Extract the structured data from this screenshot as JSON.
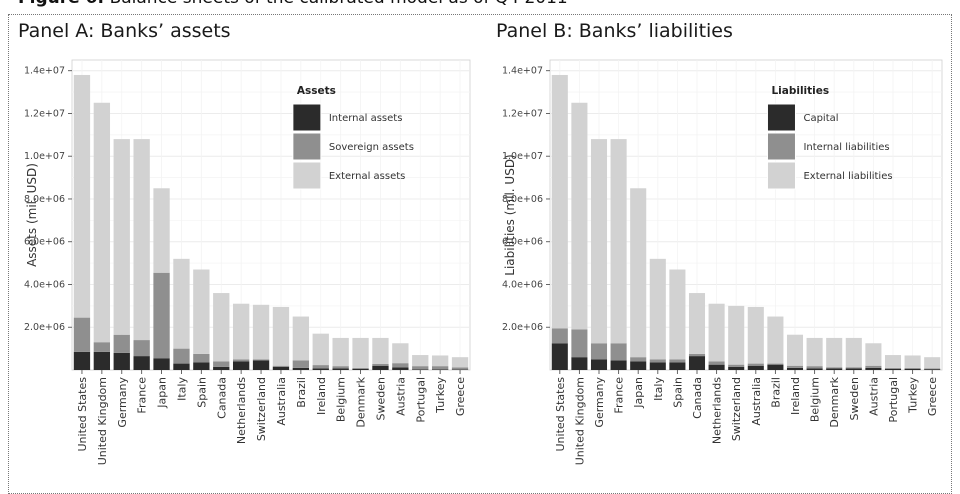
{
  "figure": {
    "caption_bold": "Figure 6:",
    "caption_text": " Balance sheets of the calibrated model as of Q4 2011"
  },
  "colors": {
    "dark": "#2b2b2b",
    "mid": "#8f8f8f",
    "light": "#d2d2d2",
    "panel_bg": "#ffffff",
    "grid": "#ececec"
  },
  "chart_data": [
    {
      "type": "bar",
      "panel_title": "Panel A: Banks’ assets",
      "ylabel": "Assets (mil. USD)",
      "ylim": [
        0,
        14500000
      ],
      "yticks": [
        2000000,
        4000000,
        6000000,
        8000000,
        10000000,
        12000000,
        14000000
      ],
      "ytick_labels": [
        "2.0e+06",
        "4.0e+06",
        "6.0e+06",
        "8.0e+06",
        "1.0e+07",
        "1.2e+07",
        "1.4e+07"
      ],
      "grid": true,
      "stacked": true,
      "legend_title": "Assets",
      "legend_position": "top-right",
      "categories": [
        "United States",
        "United Kingdom",
        "Germany",
        "France",
        "Japan",
        "Italy",
        "Spain",
        "Canada",
        "Netherlands",
        "Switzerland",
        "Australia",
        "Brazil",
        "Ireland",
        "Belgium",
        "Denmark",
        "Sweden",
        "Austria",
        "Portugal",
        "Turkey",
        "Greece"
      ],
      "series": [
        {
          "name": "Internal assets",
          "color": "#2b2b2b",
          "values": [
            850000,
            850000,
            800000,
            650000,
            550000,
            300000,
            350000,
            150000,
            400000,
            450000,
            150000,
            100000,
            80000,
            80000,
            50000,
            200000,
            120000,
            30000,
            30000,
            20000
          ]
        },
        {
          "name": "Sovereign assets",
          "color": "#8f8f8f",
          "values": [
            1600000,
            450000,
            850000,
            750000,
            4000000,
            700000,
            400000,
            250000,
            100000,
            50000,
            50000,
            350000,
            150000,
            100000,
            50000,
            80000,
            200000,
            150000,
            150000,
            100000
          ]
        },
        {
          "name": "External assets",
          "color": "#d2d2d2",
          "values": [
            11350000,
            11200000,
            9150000,
            9400000,
            3950000,
            4200000,
            3950000,
            3200000,
            2600000,
            2550000,
            2750000,
            2050000,
            1470000,
            1320000,
            1400000,
            1220000,
            930000,
            520000,
            500000,
            480000
          ]
        }
      ]
    },
    {
      "type": "bar",
      "panel_title": "Panel B: Banks’ liabilities",
      "ylabel": "Liabilities (mil. USD)",
      "ylim": [
        0,
        14500000
      ],
      "yticks": [
        2000000,
        4000000,
        6000000,
        8000000,
        10000000,
        12000000,
        14000000
      ],
      "ytick_labels": [
        "2.0e+06",
        "4.0e+06",
        "6.0e+06",
        "8.0e+06",
        "1.0e+07",
        "1.2e+07",
        "1.4e+07"
      ],
      "grid": true,
      "stacked": true,
      "legend_title": "Liabilities",
      "legend_position": "top-right",
      "categories": [
        "United States",
        "United Kingdom",
        "Germany",
        "France",
        "Japan",
        "Italy",
        "Spain",
        "Canada",
        "Netherlands",
        "Switzerland",
        "Australia",
        "Brazil",
        "Ireland",
        "Belgium",
        "Denmark",
        "Sweden",
        "Austria",
        "Portugal",
        "Turkey",
        "Greece"
      ],
      "series": [
        {
          "name": "Capital",
          "color": "#2b2b2b",
          "values": [
            1250000,
            600000,
            500000,
            450000,
            400000,
            350000,
            350000,
            650000,
            250000,
            150000,
            200000,
            250000,
            100000,
            80000,
            80000,
            80000,
            100000,
            50000,
            50000,
            40000
          ]
        },
        {
          "name": "Internal liabilities",
          "color": "#8f8f8f",
          "values": [
            700000,
            1300000,
            750000,
            800000,
            200000,
            150000,
            150000,
            100000,
            150000,
            100000,
            100000,
            50000,
            100000,
            100000,
            50000,
            50000,
            100000,
            50000,
            50000,
            40000
          ]
        },
        {
          "name": "External liabilities",
          "color": "#d2d2d2",
          "values": [
            11850000,
            10600000,
            9550000,
            9550000,
            7900000,
            4700000,
            4200000,
            2850000,
            2700000,
            2750000,
            2650000,
            2200000,
            1450000,
            1320000,
            1370000,
            1370000,
            1050000,
            600000,
            580000,
            520000
          ]
        }
      ]
    }
  ]
}
